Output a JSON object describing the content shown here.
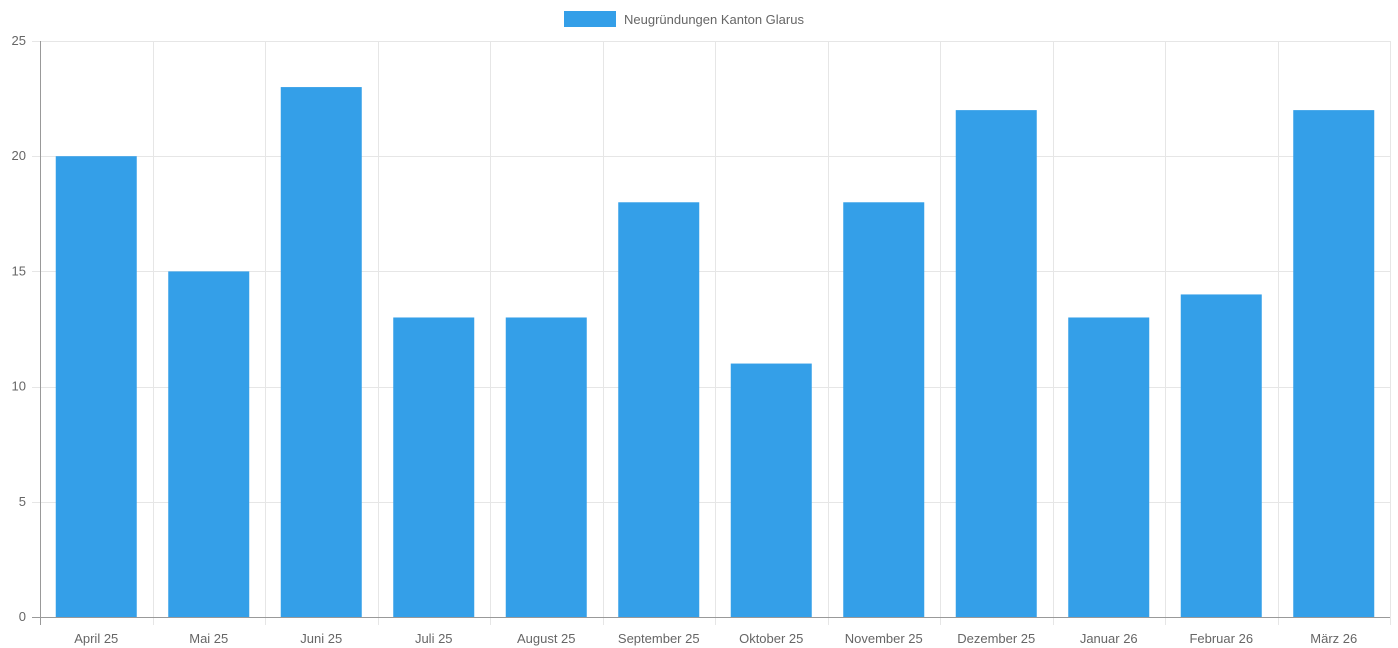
{
  "chart_data": {
    "type": "bar",
    "categories": [
      "April 25",
      "Mai 25",
      "Juni 25",
      "Juli 25",
      "August 25",
      "September 25",
      "Oktober 25",
      "November 25",
      "Dezember 25",
      "Januar 26",
      "Februar 26",
      "März 26"
    ],
    "series": [
      {
        "name": "Neugründungen Kanton Glarus",
        "values": [
          20,
          15,
          23,
          13,
          13,
          18,
          11,
          18,
          22,
          13,
          14,
          22
        ],
        "color": "#349fe8"
      }
    ],
    "ylim": [
      0,
      25
    ],
    "yticks": [
      0,
      5,
      10,
      15,
      20,
      25
    ],
    "grid": true,
    "legend_position": "top-center",
    "xlabel": "",
    "ylabel": "",
    "title": ""
  }
}
